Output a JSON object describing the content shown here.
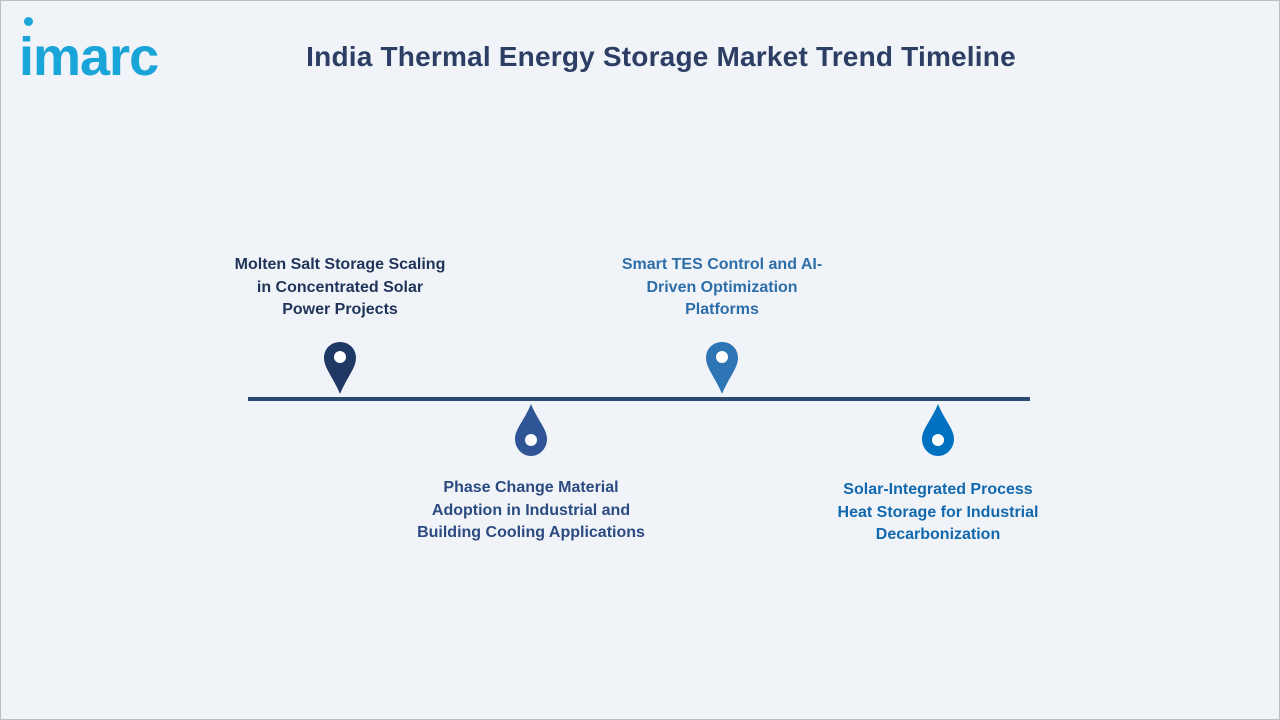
{
  "brand": {
    "logo_text": "imarc",
    "logo_color": "#1aa5d8"
  },
  "header": {
    "title": "India Thermal Energy Storage Market Trend Timeline"
  },
  "timeline": {
    "line_color": "#2b4a6f",
    "events": [
      {
        "position": "above",
        "icon": "location-pin-icon",
        "color": "#1f3864",
        "label_color": "#1f3458",
        "lines": [
          "Molten Salt Storage Scaling",
          "in Concentrated Solar",
          "Power Projects"
        ]
      },
      {
        "position": "below",
        "icon": "droplet-icon",
        "color": "#2f5597",
        "label_color": "#2b4a80",
        "lines": [
          "Phase Change Material",
          "Adoption in Industrial and",
          "Building Cooling Applications"
        ]
      },
      {
        "position": "above",
        "icon": "location-pin-icon",
        "color": "#2e75b6",
        "label_color": "#2e6ea8",
        "lines": [
          "Smart TES Control and AI-",
          "Driven Optimization",
          "Platforms"
        ]
      },
      {
        "position": "below",
        "icon": "droplet-icon",
        "color": "#0070c0",
        "label_color": "#1268ad",
        "lines": [
          "Solar-Integrated Process",
          "Heat Storage for Industrial",
          "Decarbonization"
        ]
      }
    ]
  }
}
